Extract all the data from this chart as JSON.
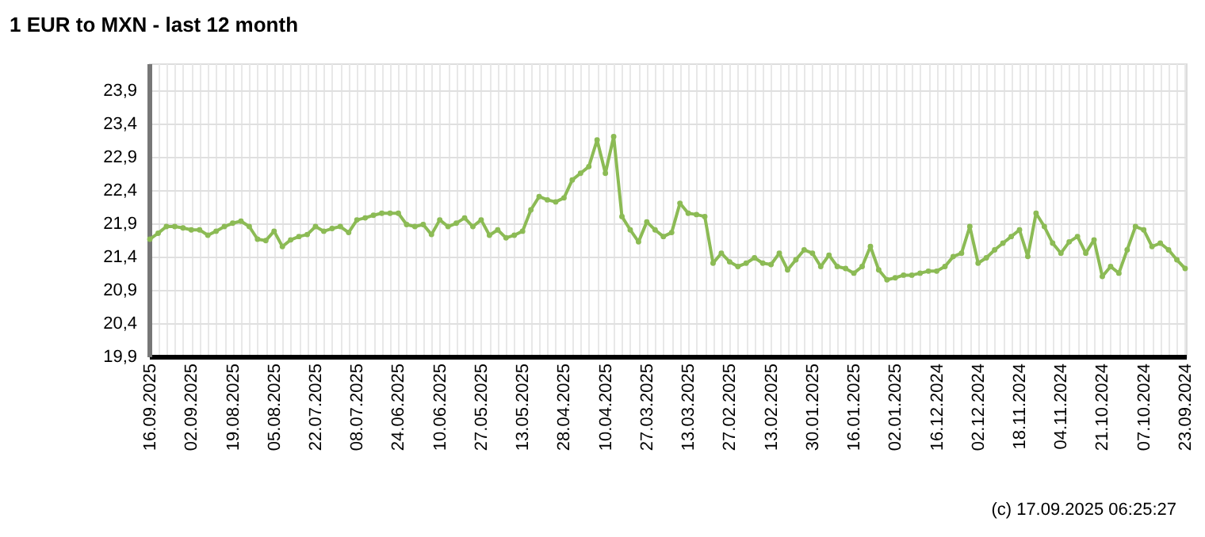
{
  "chart_data": {
    "type": "line",
    "title": "1 EUR to MXN - last 12 month",
    "categories": [
      "16.09.2025",
      null,
      null,
      null,
      null,
      "02.09.2025",
      null,
      null,
      null,
      null,
      "19.08.2025",
      null,
      null,
      null,
      null,
      "05.08.2025",
      null,
      null,
      null,
      null,
      "22.07.2025",
      null,
      null,
      null,
      null,
      "08.07.2025",
      null,
      null,
      null,
      null,
      "24.06.2025",
      null,
      null,
      null,
      null,
      "10.06.2025",
      null,
      null,
      null,
      null,
      "27.05.2025",
      null,
      null,
      null,
      null,
      "13.05.2025",
      null,
      null,
      null,
      null,
      "28.04.2025",
      null,
      null,
      null,
      null,
      "10.04.2025",
      null,
      null,
      null,
      null,
      "27.03.2025",
      null,
      null,
      null,
      null,
      "13.03.2025",
      null,
      null,
      null,
      null,
      "27.02.2025",
      null,
      null,
      null,
      null,
      "13.02.2025",
      null,
      null,
      null,
      null,
      "30.01.2025",
      null,
      null,
      null,
      null,
      "16.01.2025",
      null,
      null,
      null,
      null,
      "02.01.2025",
      null,
      null,
      null,
      null,
      "16.12.2024",
      null,
      null,
      null,
      null,
      "02.12.2024",
      null,
      null,
      null,
      null,
      "18.11.2024",
      null,
      null,
      null,
      null,
      "04.11.2024",
      null,
      null,
      null,
      null,
      "21.10.2024",
      null,
      null,
      null,
      null,
      "07.10.2024",
      null,
      null,
      null,
      null,
      "23.09.2024"
    ],
    "series": [
      {
        "color": "#8cbb55",
        "values": [
          21.66,
          21.75,
          21.85,
          21.85,
          21.83,
          21.8,
          21.8,
          21.72,
          21.78,
          21.85,
          21.9,
          21.93,
          21.85,
          21.66,
          21.64,
          21.78,
          21.55,
          21.65,
          21.7,
          21.73,
          21.85,
          21.78,
          21.82,
          21.85,
          21.76,
          21.95,
          21.98,
          22.02,
          22.05,
          22.05,
          22.05,
          21.88,
          21.85,
          21.88,
          21.73,
          21.95,
          21.85,
          21.9,
          21.98,
          21.85,
          21.95,
          21.72,
          21.8,
          21.68,
          21.72,
          21.78,
          22.1,
          22.3,
          22.25,
          22.22,
          22.28,
          22.55,
          22.65,
          22.75,
          23.15,
          22.65,
          23.2,
          22.0,
          21.8,
          21.62,
          21.92,
          21.8,
          21.7,
          21.76,
          22.2,
          22.05,
          22.03,
          22.0,
          21.3,
          21.45,
          21.32,
          21.25,
          21.3,
          21.38,
          21.3,
          21.28,
          21.45,
          21.2,
          21.35,
          21.5,
          21.45,
          21.25,
          21.42,
          21.25,
          21.22,
          21.15,
          21.25,
          21.55,
          21.2,
          21.05,
          21.08,
          21.12,
          21.12,
          21.15,
          21.18,
          21.18,
          21.25,
          21.4,
          21.45,
          21.85,
          21.3,
          21.38,
          21.5,
          21.6,
          21.7,
          21.8,
          21.4,
          22.05,
          21.85,
          21.6,
          21.45,
          21.62,
          21.7,
          21.45,
          21.65,
          21.1,
          21.25,
          21.15,
          21.5,
          21.85,
          21.8,
          21.55,
          21.6,
          21.5,
          21.35,
          21.22
        ]
      }
    ],
    "ylim": [
      19.9,
      24.3
    ],
    "yticks": [
      {
        "value": 19.9,
        "label": "19,9"
      },
      {
        "value": 20.4,
        "label": "20,4"
      },
      {
        "value": 20.9,
        "label": "20,9"
      },
      {
        "value": 21.4,
        "label": "21,4"
      },
      {
        "value": 21.9,
        "label": "21,9"
      },
      {
        "value": 22.4,
        "label": "22,4"
      },
      {
        "value": 22.9,
        "label": "22,9"
      },
      {
        "value": 23.4,
        "label": "23,4"
      },
      {
        "value": 23.9,
        "label": "23,9"
      }
    ],
    "grid": true,
    "marker": "circle",
    "line_style": "solid",
    "annotations": [
      "(c) 17.09.2025 06:25:27"
    ]
  }
}
